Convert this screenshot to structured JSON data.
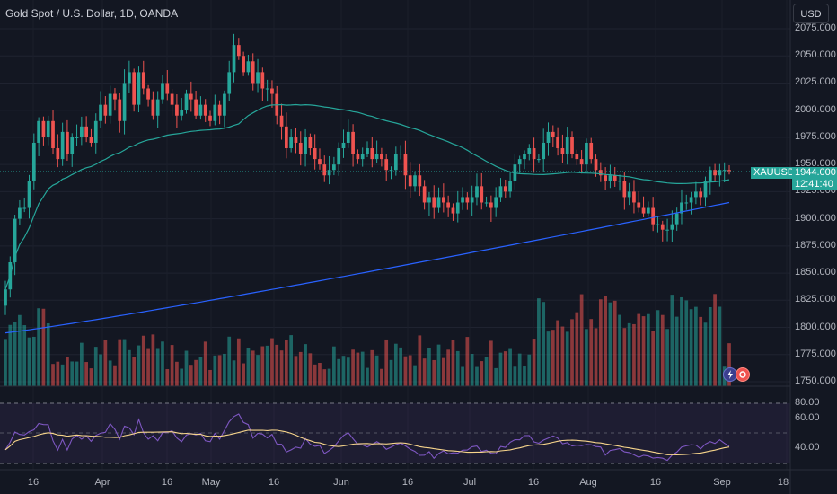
{
  "header": {
    "title": "Gold Spot / U.S. Dollar, 1D, OANDA",
    "currency_button": "USD"
  },
  "price_axis": {
    "labels": [
      "2075.000",
      "2050.000",
      "2025.000",
      "2000.000",
      "1975.000",
      "1950.000",
      "1925.000",
      "1900.000",
      "1875.000",
      "1850.000",
      "1825.000",
      "1800.000",
      "1775.000",
      "1750.000"
    ],
    "symbol_tag": "XAUUSD",
    "current_price": "1944.000",
    "countdown": "12:41:40"
  },
  "rsi_axis": {
    "labels": [
      "80.00",
      "60.00",
      "40.00"
    ]
  },
  "time_axis": {
    "labels": [
      "16",
      "Apr",
      "16",
      "May",
      "16",
      "Jun",
      "16",
      "Jul",
      "16",
      "Aug",
      "16",
      "Sep",
      "18"
    ]
  },
  "icons": {
    "indicator_1": "lightning-icon",
    "indicator_2": "earnings-icon"
  },
  "colors": {
    "up": "#26a69a",
    "down": "#ef5350",
    "ma_fast": "#26a69a",
    "ma_slow": "#2962ff",
    "rsi": "#7e57c2",
    "rsi_ma": "#f7d58b",
    "background": "#131722"
  },
  "chart_data": {
    "type": "candlestick",
    "title": "Gold Spot / U.S. Dollar, 1D, OANDA",
    "price_range": [
      1750,
      2075
    ],
    "rsi_levels": [
      80,
      60,
      40
    ],
    "close_series": [
      1835,
      1860,
      1900,
      1910,
      1910,
      1935,
      1970,
      1990,
      1975,
      1990,
      1965,
      1955,
      1980,
      1960,
      1975,
      1975,
      1985,
      1975,
      1970,
      1990,
      2005,
      1995,
      2015,
      2010,
      1990,
      2025,
      2035,
      2005,
      2035,
      2020,
      2010,
      1995,
      2010,
      2025,
      2015,
      2005,
      1995,
      2000,
      2015,
      2010,
      1995,
      2005,
      1995,
      1990,
      2005,
      1995,
      2015,
      2035,
      2060,
      2050,
      2035,
      2045,
      2025,
      2035,
      2020,
      2020,
      2015,
      1995,
      1985,
      1965,
      1975,
      1970,
      1960,
      1975,
      1965,
      1955,
      1950,
      1940,
      1945,
      1950,
      1965,
      1970,
      1980,
      1960,
      1955,
      1960,
      1965,
      1955,
      1960,
      1955,
      1945,
      1945,
      1960,
      1960,
      1940,
      1930,
      1940,
      1930,
      1915,
      1920,
      1910,
      1920,
      1915,
      1910,
      1905,
      1915,
      1920,
      1915,
      1920,
      1930,
      1915,
      1915,
      1910,
      1920,
      1930,
      1925,
      1935,
      1950,
      1955,
      1960,
      1965,
      1955,
      1955,
      1970,
      1980,
      1975,
      1965,
      1960,
      1975,
      1960,
      1955,
      1950,
      1970,
      1955,
      1945,
      1940,
      1935,
      1940,
      1935,
      1935,
      1920,
      1925,
      1915,
      1910,
      1905,
      1910,
      1895,
      1895,
      1890,
      1890,
      1895,
      1905,
      1915,
      1915,
      1920,
      1925,
      1920,
      1935,
      1945,
      1940,
      1945,
      1945,
      1944
    ],
    "ma_fast_endpoints": {
      "start": 1870,
      "end": 1935
    },
    "ma_slow_endpoints": {
      "start": 1795,
      "end": 1915
    }
  }
}
